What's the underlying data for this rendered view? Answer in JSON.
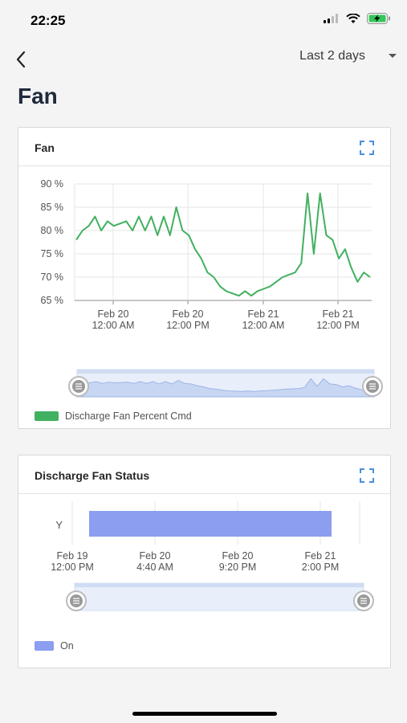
{
  "status_bar": {
    "time": "22:25"
  },
  "nav": {
    "range_label": "Last 2 days"
  },
  "page_title": "Fan",
  "colors": {
    "fan_series": "#41b060",
    "status_series": "#8c9ef0",
    "accent": "#4a8fe0"
  },
  "icons": {
    "back": "chevron-left-icon",
    "dropdown": "caret-down-icon",
    "expand": "expand-icon",
    "zoom_handle": "drag-handle-icon"
  },
  "fan_card": {
    "title": "Fan",
    "legend": "Discharge Fan Percent Cmd",
    "chart_data": {
      "type": "line",
      "y_ticks": [
        "90 %",
        "85 %",
        "80 %",
        "75 %",
        "70 %",
        "65 %"
      ],
      "ylim": [
        65,
        90
      ],
      "x_ticks": [
        {
          "date": "Feb 20",
          "time": "12:00 AM"
        },
        {
          "date": "Feb 20",
          "time": "12:00 PM"
        },
        {
          "date": "Feb 21",
          "time": "12:00 AM"
        },
        {
          "date": "Feb 21",
          "time": "12:00 PM"
        }
      ],
      "series": [
        {
          "name": "Discharge Fan Percent Cmd",
          "x": [
            0,
            1,
            2,
            3,
            4,
            5,
            6,
            7,
            8,
            9,
            10,
            11,
            12,
            13,
            14,
            15,
            16,
            17,
            18,
            19,
            20,
            21,
            22,
            23,
            24,
            25,
            26,
            27,
            28,
            29,
            30,
            31,
            32,
            33,
            34,
            35,
            36,
            37,
            38,
            39,
            40,
            41,
            42,
            43,
            44,
            45,
            46,
            47
          ],
          "values": [
            78,
            80,
            81,
            83,
            80,
            82,
            81,
            81.5,
            82,
            80,
            83,
            80,
            83,
            79,
            83,
            79,
            85,
            80,
            79,
            76,
            74,
            71,
            70,
            68,
            67,
            66.5,
            66,
            67,
            66,
            67,
            67.5,
            68,
            69,
            70,
            70.5,
            71,
            73,
            88,
            75,
            88,
            79,
            78,
            74,
            76,
            72,
            69,
            71,
            70
          ]
        }
      ]
    }
  },
  "status_card": {
    "title": "Discharge Fan Status",
    "legend": "On",
    "chart_data": {
      "type": "bar",
      "categories": [
        "Y"
      ],
      "x_ticks": [
        {
          "date": "Feb 19",
          "time": "12:00 PM"
        },
        {
          "date": "Feb 20",
          "time": "4:40 AM"
        },
        {
          "date": "Feb 20",
          "time": "9:20 PM"
        },
        {
          "date": "Feb 21",
          "time": "2:00 PM"
        }
      ],
      "series": [
        {
          "name": "On",
          "start": "Feb 19 5:00 PM",
          "end": "Feb 21 2:40 PM"
        }
      ]
    }
  }
}
